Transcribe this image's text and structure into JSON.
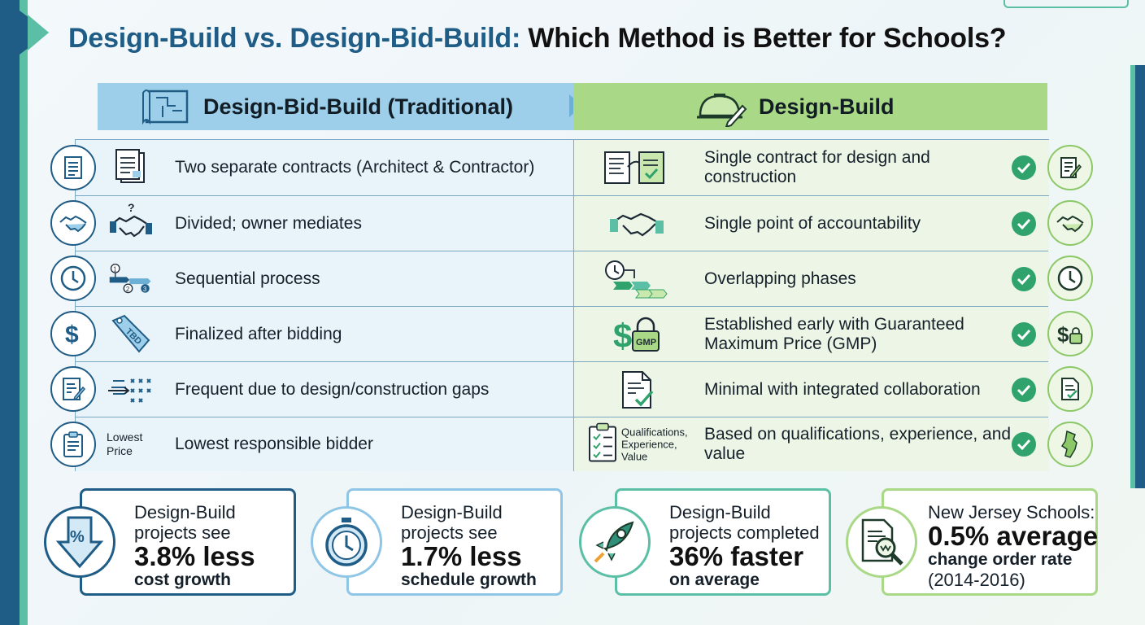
{
  "title": {
    "part1": "Design-Build vs. Design-Bid-Build:",
    "part2": "Which Method is Better for Schools?"
  },
  "columns": {
    "left_header": "Design-Bid-Build (Traditional)",
    "right_header": "Design-Build"
  },
  "rows": [
    {
      "left": "Two separate contracts (Architect & Contractor)",
      "right": "Single contract for design and construction",
      "left_icon": "document-icon",
      "right_icon": "document-pen-icon"
    },
    {
      "left": "Divided; owner mediates",
      "right": "Single point of accountability",
      "left_icon": "handshake-icon",
      "right_icon": "handshake-icon"
    },
    {
      "left": "Sequential process",
      "right": "Overlapping phases",
      "left_icon": "clock-icon",
      "right_icon": "clock-icon"
    },
    {
      "left": "Finalized after bidding",
      "right": "Established early with Guaranteed Maximum Price (GMP)",
      "left_icon": "dollar-icon",
      "right_icon": "dollar-lock-icon"
    },
    {
      "left": "Frequent due to design/construction gaps",
      "right": "Minimal with integrated collaboration",
      "left_icon": "change-order-icon",
      "right_icon": "document-check-icon"
    },
    {
      "left": "Lowest responsible bidder",
      "right": "Based on qualifications, experience, and value",
      "left_icon": "clipboard-icon",
      "right_icon": "new-jersey-icon"
    }
  ],
  "tags": {
    "tbd": "TBD",
    "gmp": "GMP",
    "question": "?",
    "lowest_price": [
      "Lowest",
      "Price"
    ],
    "qualifications": [
      "Qualifications,",
      "Experience,",
      "Value"
    ],
    "step1": "1",
    "step2": "2",
    "step3": "3"
  },
  "stats": [
    {
      "line1": "Design-Build",
      "line2": "projects see",
      "big": "3.8% less",
      "line3": "cost growth",
      "icon": "percent-down-arrow-icon",
      "color": "#1f5c86"
    },
    {
      "line1": "Design-Build",
      "line2": "projects see",
      "big": "1.7% less",
      "line3": "schedule growth",
      "icon": "stopwatch-icon",
      "color": "#8fc6e6"
    },
    {
      "line1": "Design-Build",
      "line2": "projects completed",
      "big": "36% faster",
      "line3": "on average",
      "icon": "rocket-icon",
      "color": "#5bbfa6"
    },
    {
      "line1": "New Jersey Schools:",
      "line2": "",
      "big": "0.5% average",
      "line3": "change order rate",
      "line4": "(2014-2016)",
      "icon": "magnifier-document-icon",
      "color": "#a9d886"
    }
  ],
  "colors": {
    "navy": "#1f5c86",
    "left_header": "#9dcfea",
    "right_header": "#a9d886",
    "check_green": "#2fa36b"
  }
}
